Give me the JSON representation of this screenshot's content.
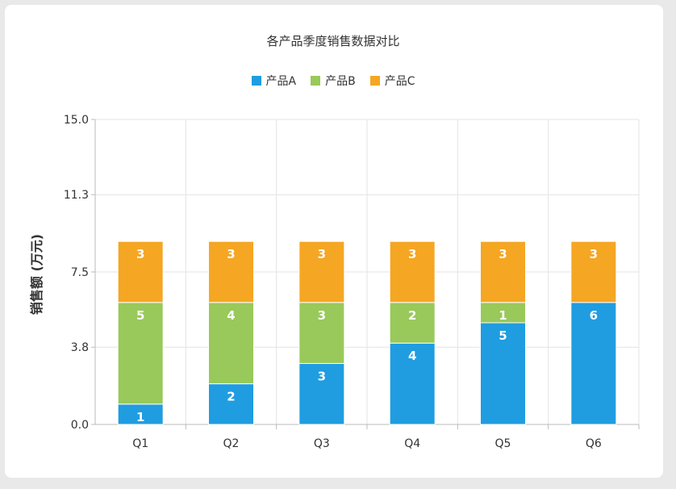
{
  "chart_data": {
    "type": "bar",
    "stacked": true,
    "title": "各产品季度销售数据对比",
    "ylabel": "销售额 (万元)",
    "xlabel": "",
    "categories": [
      "Q1",
      "Q2",
      "Q3",
      "Q4",
      "Q5",
      "Q6"
    ],
    "series": [
      {
        "name": "产品A",
        "color": "#1f9de0",
        "values": [
          1,
          2,
          3,
          4,
          5,
          6
        ]
      },
      {
        "name": "产品B",
        "color": "#98c95a",
        "values": [
          5,
          4,
          3,
          2,
          1,
          0
        ]
      },
      {
        "name": "产品C",
        "color": "#f5a623",
        "values": [
          3,
          3,
          3,
          3,
          3,
          3
        ]
      }
    ],
    "yticks": [
      "0.0",
      "3.8",
      "7.5",
      "11.3",
      "15.0"
    ],
    "ylim": [
      0,
      15
    ],
    "grid": true,
    "legend_position": "top"
  }
}
